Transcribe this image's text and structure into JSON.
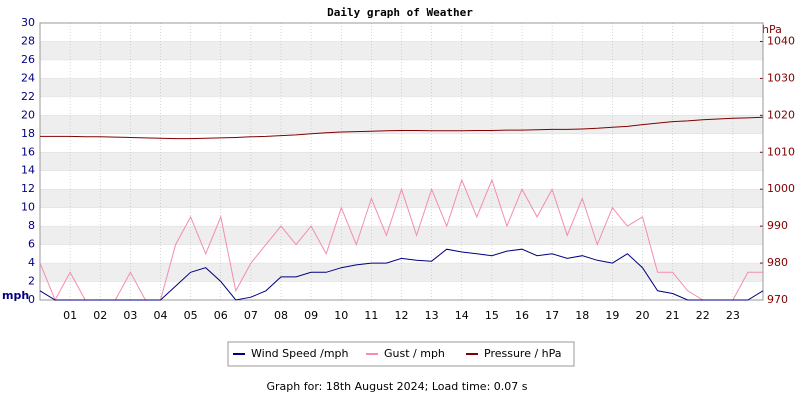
{
  "chart_data": {
    "type": "line",
    "title": "Daily graph of Weather",
    "ylabel": "mph",
    "y2label": "hPa",
    "caption": "Graph for: 18th August 2024; Load time: 0.07 s",
    "xlim": [
      0,
      24
    ],
    "xticks": [
      {
        "value": 1,
        "label": "01"
      },
      {
        "value": 2,
        "label": "02"
      },
      {
        "value": 3,
        "label": "03"
      },
      {
        "value": 4,
        "label": "04"
      },
      {
        "value": 5,
        "label": "05"
      },
      {
        "value": 6,
        "label": "06"
      },
      {
        "value": 7,
        "label": "07"
      },
      {
        "value": 8,
        "label": "08"
      },
      {
        "value": 9,
        "label": "09"
      },
      {
        "value": 10,
        "label": "10"
      },
      {
        "value": 11,
        "label": "11"
      },
      {
        "value": 12,
        "label": "12"
      },
      {
        "value": 13,
        "label": "13"
      },
      {
        "value": 14,
        "label": "14"
      },
      {
        "value": 15,
        "label": "15"
      },
      {
        "value": 16,
        "label": "16"
      },
      {
        "value": 17,
        "label": "17"
      },
      {
        "value": 18,
        "label": "18"
      },
      {
        "value": 19,
        "label": "19"
      },
      {
        "value": 20,
        "label": "20"
      },
      {
        "value": 21,
        "label": "21"
      },
      {
        "value": 22,
        "label": "22"
      },
      {
        "value": 23,
        "label": "23"
      }
    ],
    "ylim": [
      0,
      30
    ],
    "yticks": [
      0,
      2,
      4,
      6,
      8,
      10,
      12,
      14,
      16,
      18,
      20,
      22,
      24,
      26,
      28,
      30
    ],
    "y2lim": [
      970,
      1045
    ],
    "y2ticks": [
      970,
      980,
      990,
      1000,
      1010,
      1020,
      1030,
      1040
    ],
    "grid": true,
    "x": [
      0,
      0.5,
      1,
      1.5,
      2,
      2.5,
      3,
      3.5,
      4,
      4.5,
      5,
      5.5,
      6,
      6.5,
      7,
      7.5,
      8,
      8.5,
      9,
      9.5,
      10,
      10.5,
      11,
      11.5,
      12,
      12.5,
      13,
      13.5,
      14,
      14.5,
      15,
      15.5,
      16,
      16.5,
      17,
      17.5,
      18,
      18.5,
      19,
      19.5,
      20,
      20.5,
      21,
      21.5,
      22,
      22.5,
      23,
      23.5,
      24
    ],
    "series": [
      {
        "name": "Wind Speed /mph",
        "color": "#000080",
        "values": [
          1,
          0,
          0,
          0,
          0,
          0,
          0,
          0,
          0,
          1.5,
          3,
          3.5,
          2,
          0,
          0.3,
          1,
          2.5,
          2.5,
          3,
          3,
          3.5,
          3.8,
          4,
          4,
          4.5,
          4.3,
          4.2,
          5.5,
          5.2,
          5,
          4.8,
          5.3,
          5.5,
          4.8,
          5,
          4.5,
          4.8,
          4.3,
          4,
          5,
          3.5,
          1,
          0.7,
          0,
          0,
          0,
          0,
          0,
          1
        ]
      },
      {
        "name": "Gust / mph",
        "color": "#f48cb4",
        "values": [
          4,
          0,
          3,
          0,
          0,
          0,
          3,
          0,
          0,
          6,
          9,
          5,
          9,
          1,
          4,
          6,
          8,
          6,
          8,
          5,
          10,
          6,
          11,
          7,
          12,
          7,
          12,
          8,
          13,
          9,
          13,
          8,
          12,
          9,
          12,
          7,
          11,
          6,
          10,
          8,
          9,
          3,
          3,
          1,
          0,
          0,
          0,
          3,
          3
        ]
      },
      {
        "name": "Pressure / hPa",
        "color": "#800000",
        "axis": "y2",
        "values": [
          1014.3,
          1014.3,
          1014.3,
          1014.2,
          1014.2,
          1014.1,
          1014.0,
          1013.9,
          1013.8,
          1013.7,
          1013.7,
          1013.8,
          1013.9,
          1014.0,
          1014.2,
          1014.3,
          1014.5,
          1014.7,
          1015.0,
          1015.3,
          1015.5,
          1015.6,
          1015.7,
          1015.8,
          1015.9,
          1015.9,
          1015.8,
          1015.8,
          1015.8,
          1015.9,
          1015.9,
          1016.0,
          1016.0,
          1016.1,
          1016.2,
          1016.2,
          1016.3,
          1016.5,
          1016.8,
          1017.0,
          1017.5,
          1017.9,
          1018.3,
          1018.5,
          1018.8,
          1019.0,
          1019.2,
          1019.3,
          1019.5
        ]
      }
    ]
  }
}
